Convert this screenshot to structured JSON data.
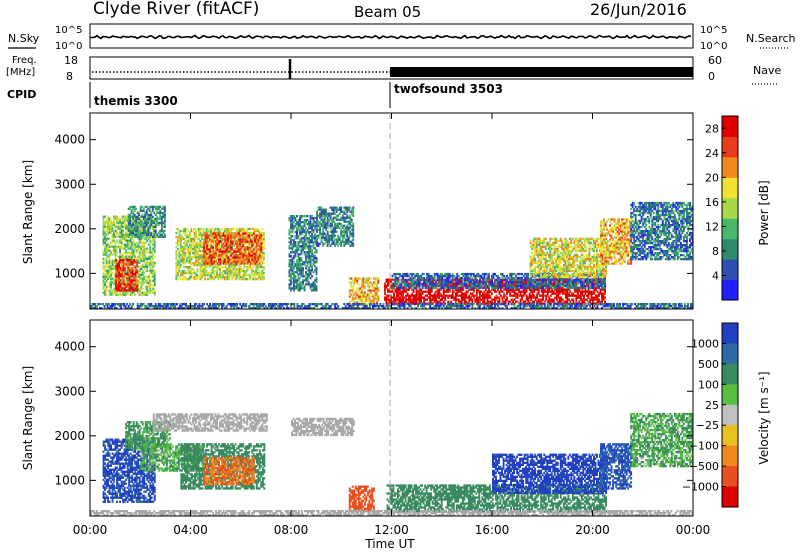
{
  "header": {
    "title": "Clyde River (fitACF)",
    "beam": "Beam 05",
    "date": "26/Jun/2016"
  },
  "status_panel": {
    "nsky_label": "N.Sky",
    "nsearch_label": "N.Search",
    "noise_ticks": [
      "10^5",
      "10^0"
    ],
    "freq_label_1": "Freq.",
    "freq_label_2": "[MHz]",
    "freq_ticks": [
      "18",
      "8"
    ],
    "nave_label": "Nave",
    "nave_ticks": [
      "60",
      "0"
    ],
    "cpid_label": "CPID",
    "cpid_segments": [
      {
        "name": "themis 3300",
        "start_hour": 0,
        "end_hour": 12
      },
      {
        "name": "twofsound 3503",
        "start_hour": 12,
        "end_hour": 24
      }
    ]
  },
  "colors": {
    "power_scale": [
      "#2020ff",
      "#2e4fb0",
      "#2f8a6a",
      "#49b86a",
      "#a8d84a",
      "#f0e030",
      "#f08a20",
      "#e83a1c",
      "#e00000"
    ],
    "velocity_scale": [
      "#2040c0",
      "#2e6aa8",
      "#3a8a60",
      "#58c040",
      "#c0c0c0",
      "#e8c020",
      "#f08a20",
      "#e85020",
      "#e00000"
    ],
    "ground_scatter": "#a8a8a8"
  },
  "chart_data": [
    {
      "type": "heatmap",
      "panel": "power",
      "xlabel": "",
      "ylabel": "Slant Range [km]",
      "xlim": [
        0,
        24
      ],
      "ylim": [
        200,
        4600
      ],
      "yticks": [
        "1000",
        "2000",
        "3000",
        "4000"
      ],
      "colorbar_label": "Power [dB]",
      "colorbar_ticks": [
        "4",
        "8",
        "12",
        "16",
        "20",
        "24",
        "28"
      ],
      "colorbar_range": [
        0,
        30
      ],
      "regions": [
        {
          "t": [
            0.5,
            2.6
          ],
          "r": [
            500,
            2300
          ],
          "level": 14
        },
        {
          "t": [
            1.0,
            1.9
          ],
          "r": [
            600,
            1300
          ],
          "level": 26
        },
        {
          "t": [
            3.4,
            6.9
          ],
          "r": [
            850,
            2000
          ],
          "level": 16
        },
        {
          "t": [
            4.5,
            6.8
          ],
          "r": [
            1200,
            1900
          ],
          "level": 24
        },
        {
          "t": [
            1.5,
            3.0
          ],
          "r": [
            1800,
            2500
          ],
          "level": 9
        },
        {
          "t": [
            7.9,
            9.0
          ],
          "r": [
            600,
            2300
          ],
          "level": 8
        },
        {
          "t": [
            9.0,
            10.5
          ],
          "r": [
            1600,
            2500
          ],
          "level": 8
        },
        {
          "t": [
            10.3,
            11.5
          ],
          "r": [
            280,
            900
          ],
          "level": 20
        },
        {
          "t": [
            11.7,
            20.5
          ],
          "r": [
            300,
            850
          ],
          "level": 30
        },
        {
          "t": [
            12.0,
            20.5
          ],
          "r": [
            650,
            1000
          ],
          "level": 6
        },
        {
          "t": [
            17.5,
            20.5
          ],
          "r": [
            900,
            1800
          ],
          "level": 17
        },
        {
          "t": [
            20.3,
            21.5
          ],
          "r": [
            1200,
            2200
          ],
          "level": 20
        },
        {
          "t": [
            21.5,
            24.0
          ],
          "r": [
            1300,
            2600
          ],
          "level": 7
        },
        {
          "t": [
            0.0,
            24.0
          ],
          "r": [
            200,
            300
          ],
          "level": 6
        }
      ]
    },
    {
      "type": "heatmap",
      "panel": "velocity",
      "xlabel": "Time UT",
      "ylabel": "Slant Range [km]",
      "xlim": [
        0,
        24
      ],
      "ylim": [
        200,
        4600
      ],
      "xticks": [
        "00:00",
        "04:00",
        "08:00",
        "12:00",
        "16:00",
        "20:00",
        "00:00"
      ],
      "yticks": [
        "1000",
        "2000",
        "3000",
        "4000"
      ],
      "colorbar_label": "Velocity [m s⁻¹]",
      "colorbar_ticks": [
        "1000",
        "500",
        "100",
        "25",
        "−25",
        "−100",
        "−500",
        "−1000"
      ],
      "regions": [
        {
          "t": [
            0.5,
            2.6
          ],
          "r": [
            500,
            1900
          ],
          "v": 800
        },
        {
          "t": [
            1.4,
            3.2
          ],
          "r": [
            1700,
            2300
          ],
          "v": 80
        },
        {
          "t": [
            2.0,
            4.5
          ],
          "r": [
            1200,
            1800
          ],
          "v": 60
        },
        {
          "t": [
            3.6,
            6.9
          ],
          "r": [
            800,
            1800
          ],
          "v": 150
        },
        {
          "t": [
            4.5,
            6.5
          ],
          "r": [
            900,
            1500
          ],
          "v": -300
        },
        {
          "t": [
            2.5,
            7.0
          ],
          "r": [
            2100,
            2500
          ],
          "v": 0,
          "ground": true
        },
        {
          "t": [
            8.0,
            10.5
          ],
          "r": [
            2000,
            2400
          ],
          "v": 0,
          "ground": true
        },
        {
          "t": [
            10.3,
            11.3
          ],
          "r": [
            300,
            850
          ],
          "v": -400
        },
        {
          "t": [
            11.8,
            20.5
          ],
          "r": [
            280,
            900
          ],
          "v": 120
        },
        {
          "t": [
            16.0,
            20.5
          ],
          "r": [
            700,
            1600
          ],
          "v": 900
        },
        {
          "t": [
            20.3,
            21.5
          ],
          "r": [
            800,
            1800
          ],
          "v": 700
        },
        {
          "t": [
            21.5,
            24.0
          ],
          "r": [
            1300,
            2500
          ],
          "v": 60
        },
        {
          "t": [
            0.0,
            24.0
          ],
          "r": [
            200,
            300
          ],
          "v": 0,
          "ground": true
        }
      ]
    }
  ]
}
